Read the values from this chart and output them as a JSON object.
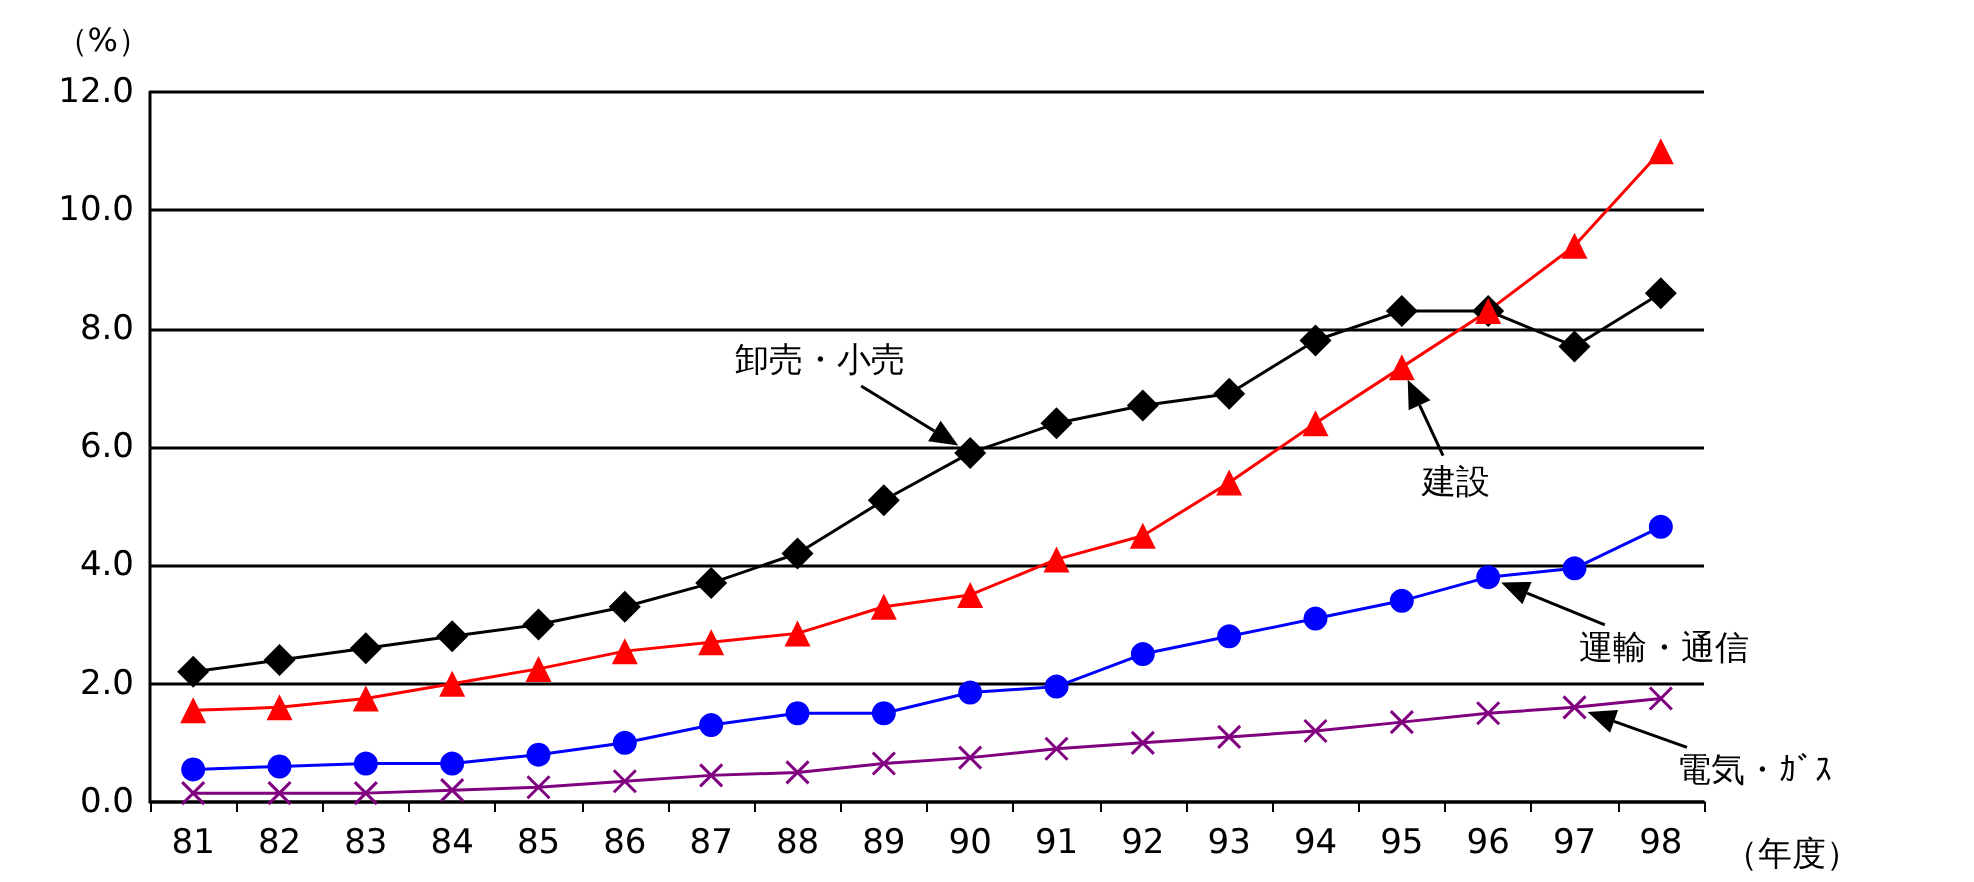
{
  "chart_data": {
    "type": "line",
    "ylabel": "（%）",
    "xlabel": "（年度）",
    "categories": [
      "81",
      "82",
      "83",
      "84",
      "85",
      "86",
      "87",
      "88",
      "89",
      "90",
      "91",
      "92",
      "93",
      "94",
      "95",
      "96",
      "97",
      "98"
    ],
    "ylim": [
      0,
      12
    ],
    "yticks": [
      {
        "value": 0,
        "label": "0.0"
      },
      {
        "value": 2,
        "label": "2.0"
      },
      {
        "value": 4,
        "label": "4.0"
      },
      {
        "value": 6,
        "label": "6.0"
      },
      {
        "value": 8,
        "label": "8.0"
      },
      {
        "value": 10,
        "label": "10.0"
      },
      {
        "value": 12,
        "label": "12.0"
      }
    ],
    "grid": "y",
    "series": [
      {
        "color": "#000000",
        "marker": "diamond",
        "values": [
          2.2,
          2.4,
          2.6,
          2.8,
          3.0,
          3.3,
          3.7,
          4.2,
          5.1,
          5.9,
          6.4,
          6.7,
          6.9,
          7.8,
          8.3,
          8.3,
          7.7,
          8.6
        ]
      },
      {
        "color": "#ff0000",
        "marker": "triangle",
        "values": [
          1.55,
          1.6,
          1.75,
          2.0,
          2.25,
          2.55,
          2.7,
          2.85,
          3.3,
          3.5,
          4.1,
          4.5,
          5.4,
          6.4,
          7.35,
          8.3,
          9.4,
          11.0
        ]
      },
      {
        "color": "#0000ff",
        "marker": "circle",
        "values": [
          0.55,
          0.6,
          0.65,
          0.65,
          0.8,
          1.0,
          1.3,
          1.5,
          1.5,
          1.85,
          1.95,
          2.5,
          2.8,
          3.1,
          3.4,
          3.8,
          3.95,
          4.65
        ]
      },
      {
        "color": "#800080",
        "marker": "cross",
        "values": [
          0.15,
          0.15,
          0.15,
          0.2,
          0.25,
          0.35,
          0.45,
          0.5,
          0.65,
          0.75,
          0.9,
          1.0,
          1.1,
          1.2,
          1.35,
          1.5,
          1.6,
          1.75
        ]
      }
    ],
    "annotations": [
      {
        "text": "卸売・小売",
        "x": "90",
        "y": 5.9
      },
      {
        "text": "建設",
        "x": "95",
        "y": 7.35
      },
      "運輸・通信",
      "電気・ｶﾞｽ"
    ]
  }
}
